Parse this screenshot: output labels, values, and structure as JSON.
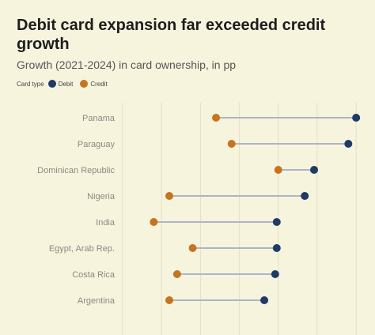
{
  "title": "Debit card expansion far exceeded credit growth",
  "subtitle": "Growth (2021-2024) in card ownership, in pp",
  "legend": {
    "label": "Card type",
    "items": [
      {
        "name": "Debit",
        "color": "#1f3a66"
      },
      {
        "name": "Credit",
        "color": "#c8731f"
      }
    ]
  },
  "chart_data": {
    "type": "dumbbell",
    "categories": [
      "Panama",
      "Paraguay",
      "Dominican Republic",
      "Nigeria",
      "India",
      "Egypt, Arab Rep.",
      "Costa Rica",
      "Argentina"
    ],
    "series": [
      {
        "name": "Credit",
        "color": "#c8731f",
        "values": [
          6,
          7,
          10,
          3,
          2,
          4.5,
          3.5,
          3
        ]
      },
      {
        "name": "Debit",
        "color": "#1f3a66",
        "values": [
          15,
          14.5,
          12.3,
          11.7,
          9.9,
          9.9,
          9.8,
          9.1
        ]
      }
    ],
    "xlim": [
      0,
      15.5
    ],
    "grid": true,
    "legend_position": "top-left"
  }
}
